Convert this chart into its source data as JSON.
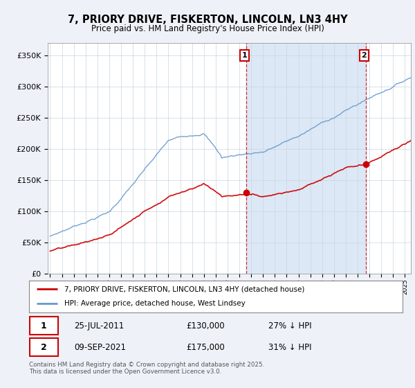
{
  "title": "7, PRIORY DRIVE, FISKERTON, LINCOLN, LN3 4HY",
  "subtitle": "Price paid vs. HM Land Registry's House Price Index (HPI)",
  "background_color": "#eef2f8",
  "plot_bg_color": "#ffffff",
  "red_color": "#cc0000",
  "blue_color": "#6699cc",
  "shade_color": "#dce8f5",
  "sale1_x": 2011.57,
  "sale1_y": 130000,
  "sale2_x": 2021.69,
  "sale2_y": 175000,
  "legend_house": "7, PRIORY DRIVE, FISKERTON, LINCOLN, LN3 4HY (detached house)",
  "legend_hpi": "HPI: Average price, detached house, West Lindsey",
  "footer": "Contains HM Land Registry data © Crown copyright and database right 2025.\nThis data is licensed under the Open Government Licence v3.0.",
  "ylim": [
    0,
    370000
  ],
  "xlim": [
    1994.8,
    2025.5
  ],
  "yticks": [
    0,
    50000,
    100000,
    150000,
    200000,
    250000,
    300000,
    350000
  ],
  "ylabels": [
    "£0",
    "£50K",
    "£100K",
    "£150K",
    "£200K",
    "£250K",
    "£300K",
    "£350K"
  ]
}
